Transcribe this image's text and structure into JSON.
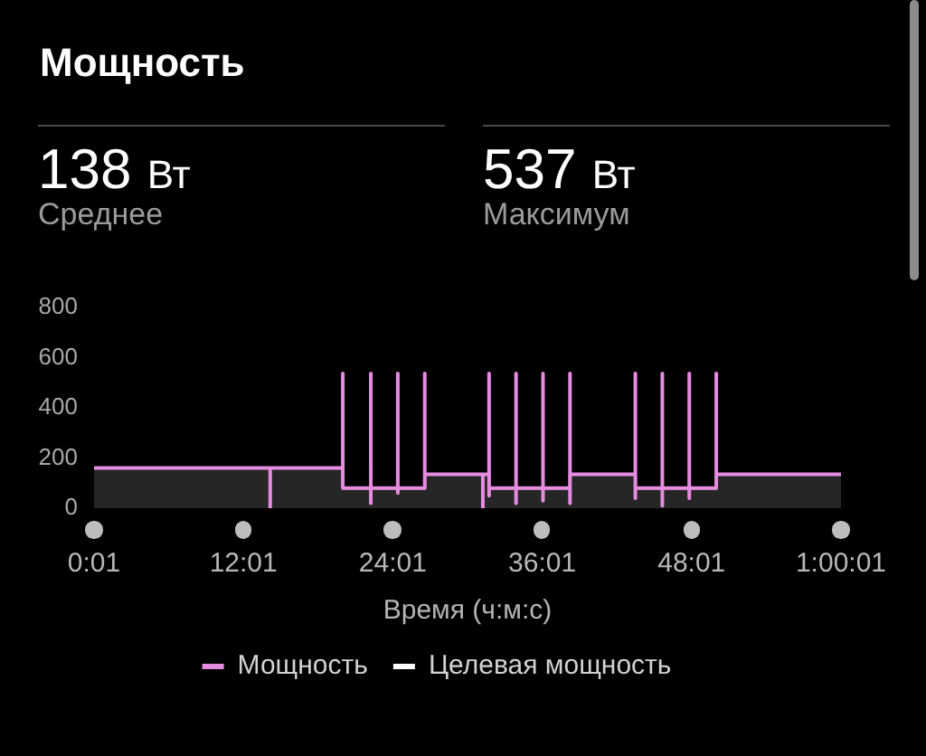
{
  "chart_data": {
    "type": "line",
    "title": "Мощность",
    "xlabel": "Время (ч:м:с)",
    "annotations": [
      "138 Вт",
      "Среднее",
      "537 Вт",
      "Максимум"
    ],
    "series": [
      {
        "name": "Мощность",
        "color": "#e58be0",
        "x": [
          1,
          850,
          850,
          850,
          1200,
          1200,
          1200,
          1335,
          1335,
          1335,
          1335,
          1465,
          1465,
          1465,
          1465,
          1595,
          1595,
          1595,
          1875,
          1875,
          1875,
          1905,
          1905,
          1905,
          1905,
          2035,
          2035,
          2035,
          2035,
          2165,
          2165,
          2165,
          2165,
          2295,
          2295,
          2295,
          2295,
          2610,
          2610,
          2610,
          2610,
          2740,
          2740,
          2740,
          2740,
          2870,
          2870,
          2870,
          2870,
          3000,
          3000,
          3000,
          3601
        ],
        "values": [
          160,
          160,
          0,
          160,
          160,
          537,
          80,
          80,
          537,
          20,
          80,
          80,
          537,
          60,
          80,
          80,
          537,
          135,
          135,
          0,
          135,
          135,
          537,
          50,
          80,
          80,
          537,
          20,
          80,
          80,
          537,
          30,
          80,
          80,
          537,
          20,
          135,
          135,
          537,
          40,
          80,
          80,
          537,
          10,
          80,
          80,
          537,
          40,
          80,
          80,
          537,
          135,
          135
        ]
      },
      {
        "name": "Целевая мощность",
        "type": "area",
        "color": "#ffffff",
        "x": [
          1,
          1200,
          1200,
          1595,
          1595,
          1905,
          1905,
          2295,
          2295,
          2610,
          2610,
          3000,
          3000,
          3601
        ],
        "values": [
          160,
          160,
          80,
          80,
          135,
          135,
          80,
          80,
          135,
          135,
          80,
          80,
          135,
          135
        ]
      }
    ],
    "xlim": [
      1,
      3601
    ],
    "xticks": [
      {
        "value": 1,
        "label": "0:01"
      },
      {
        "value": 721,
        "label": "12:01"
      },
      {
        "value": 1441,
        "label": "24:01"
      },
      {
        "value": 2161,
        "label": "36:01"
      },
      {
        "value": 2881,
        "label": "48:01"
      },
      {
        "value": 3601,
        "label": "1:00:01"
      }
    ],
    "ylim": [
      0,
      800
    ],
    "yticks": [
      0,
      200,
      400,
      600,
      800
    ],
    "legend": "bottom"
  }
}
